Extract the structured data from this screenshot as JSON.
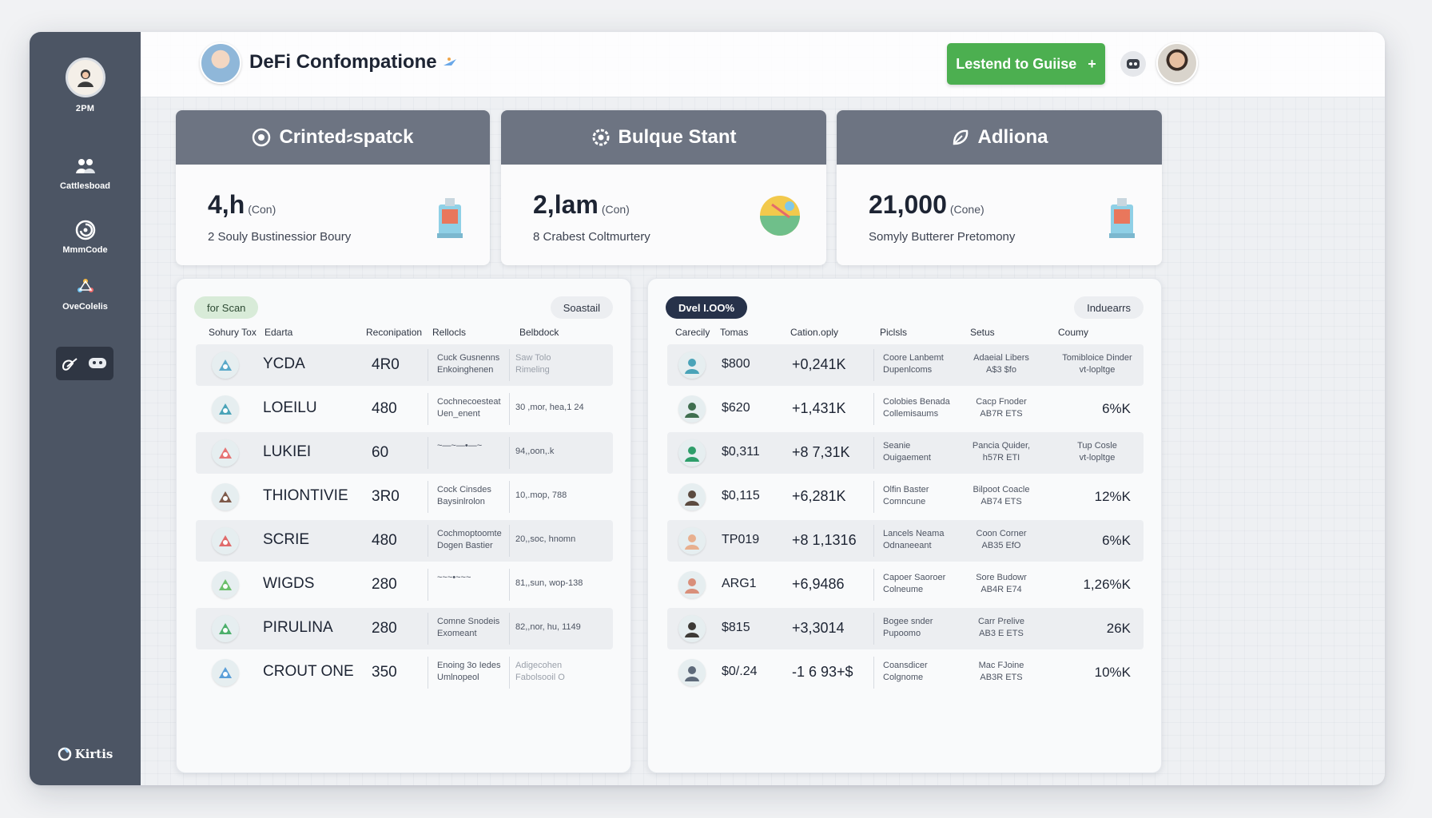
{
  "sidebar": {
    "profile_caption": "2PM",
    "items": [
      {
        "label": "Cattlesboad",
        "icon": "users-icon"
      },
      {
        "label": "MmmCode",
        "icon": "swirl-icon"
      },
      {
        "label": "OveColelis",
        "icon": "network-icon"
      }
    ],
    "footer_brand": "Kirtis"
  },
  "header": {
    "title": "DeFi Confompatione",
    "cta_label": "Lestend to Guiise",
    "cta_arrow": "+"
  },
  "stats": [
    {
      "title": "Crinted⸗spatck",
      "value": "4,h",
      "unit": "(Con)",
      "subtitle": "2 Souly Bustinessior Boury",
      "icon": "chip-icon"
    },
    {
      "title": "Bulque Stant",
      "value": "2,lam",
      "unit": "(Con)",
      "subtitle": "8 Crabest Coltmurtery",
      "icon": "gear-icon"
    },
    {
      "title": "Adliona",
      "value": "21,000",
      "unit": "(Cone)",
      "subtitle": "Somyly Butterer Pretomony",
      "icon": "leaf-icon"
    }
  ],
  "left_panel": {
    "filter_label": "for Scan",
    "action_label": "Soastail",
    "columns": [
      "Sohury Tox",
      "Edarta",
      "Reconipation",
      "Rellocls",
      "Belbdock"
    ],
    "rows": [
      {
        "token": "YCDA",
        "value": "4R0",
        "notes": [
          "Cuck Gusnenns",
          "Enkoinghenen"
        ],
        "detail": [
          "Saw Tolo",
          "Rimeling"
        ],
        "detail_faded": true
      },
      {
        "token": "LOEILU",
        "value": "480",
        "notes": [
          "Cochnecoesteat",
          "Uen_enent"
        ],
        "detail": [
          "30 ,mor, hea,1 24"
        ],
        "detail_faded": false
      },
      {
        "token": "LUKIEI",
        "value": "60",
        "notes": [
          "~—~—•—~"
        ],
        "detail": [
          "94,,oon,.k"
        ],
        "detail_faded": false
      },
      {
        "token": "THIONTIVIE",
        "value": "3R0",
        "notes": [
          "Cock Cinsdes",
          "Baysinlrolon"
        ],
        "detail": [
          "10,.mop, 788"
        ],
        "detail_faded": false
      },
      {
        "token": "SCRIE",
        "value": "480",
        "notes": [
          "Cochmoptoomte",
          "Dogen Bastier"
        ],
        "detail": [
          "20,,soc, hnomn"
        ],
        "detail_faded": false
      },
      {
        "token": "WIGDS",
        "value": "280",
        "notes": [
          "~~~•~~~"
        ],
        "detail": [
          "81,,sun, wop-138"
        ],
        "detail_faded": false
      },
      {
        "token": "PIRULINA",
        "value": "280",
        "notes": [
          "Comne Snodeis",
          "Exomeant"
        ],
        "detail": [
          "82,,nor, hu, 1149"
        ],
        "detail_faded": false
      },
      {
        "token": "CROUT ONE",
        "value": "350",
        "notes": [
          "Enoing 3o Iedes",
          "Umlnopeol"
        ],
        "detail": [
          "Adigecohen",
          "Fabolsooil O"
        ],
        "detail_faded": true
      }
    ]
  },
  "right_panel": {
    "filter_label": "Dvel I.OO%",
    "action_label": "Induearrs",
    "columns": [
      "Carecily",
      "Tomas",
      "Cation.oply",
      "Piclsls",
      "Setus",
      "Coumy"
    ],
    "rows": [
      {
        "price": "$800",
        "change": "+0,241K",
        "desc": [
          "Coore Lanbemt",
          "Dupenlcoms"
        ],
        "status": [
          "Adaeial Libers",
          "A$3 $fo"
        ],
        "metric": [
          "Tomibloice Dinder",
          "vt-lopltge"
        ]
      },
      {
        "price": "$620",
        "change": "+1,431K",
        "desc": [
          "Colobies Benada",
          "Collemisaums"
        ],
        "status": [
          "Cacp Fnoder",
          "AB7R ETS"
        ],
        "metric": [
          "6%K"
        ]
      },
      {
        "price": "$0,311",
        "change": "+8 7,31K",
        "desc": [
          "Seanie",
          "Ouigaement"
        ],
        "status": [
          "Pancia Quider,",
          "h57R ETI"
        ],
        "metric": [
          "Tup Cosle",
          "vt-lopltge"
        ]
      },
      {
        "price": "$0,115",
        "change": "+6,281K",
        "desc": [
          "Olfin Baster",
          "Comncune"
        ],
        "status": [
          "Bilpoot Coacle",
          "AB74 ETS"
        ],
        "metric": [
          "12%K"
        ]
      },
      {
        "price": "TP019",
        "change": "+8 1,1316",
        "desc": [
          "Lancels Neama",
          "Odnaneeant"
        ],
        "status": [
          "Coon Corner",
          "AB35 EfO"
        ],
        "metric": [
          "6%K"
        ]
      },
      {
        "price": "ARG1",
        "change": "+6,9486",
        "desc": [
          "Capoer Saoroer",
          "Colneume"
        ],
        "status": [
          "Sore Budowr",
          "AB4R E74"
        ],
        "metric": [
          "1,26%K"
        ]
      },
      {
        "price": "$815",
        "change": "+3,3014",
        "desc": [
          "Bogee snder",
          "Pupoomo"
        ],
        "status": [
          "Carr Prelive",
          "AB3 E ETS"
        ],
        "metric": [
          "26K"
        ]
      },
      {
        "price": "$0/.24",
        "change": "-1 6 93+$",
        "desc": [
          "Coansdicer",
          "Colgnome"
        ],
        "status": [
          "Mac FJoine",
          "AB3R ETS"
        ],
        "metric": [
          "10%K"
        ]
      }
    ]
  },
  "colors": {
    "sidebar_bg": "#4c5564",
    "card_header": "#6d7482",
    "cta_green": "#4caf50",
    "pill_dark": "#27324a",
    "pill_green": "#d8ebd8"
  }
}
